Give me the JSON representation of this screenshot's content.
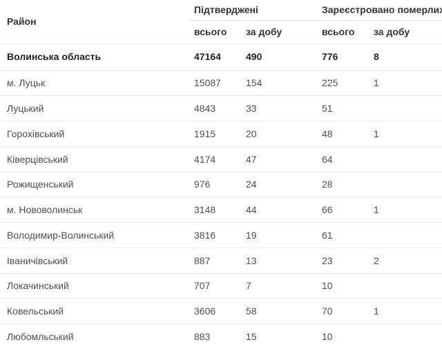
{
  "colors": {
    "bg": "#ffffff",
    "header_text": "#333333",
    "body_text": "#4f4f4f",
    "total_text": "#222222",
    "row_divider": "#e9e9e9",
    "header_divider": "#d6d6d6",
    "group_divider": "#dcdcdc"
  },
  "header": {
    "district": "Район",
    "confirmed_group": "Підтверджені",
    "deaths_group": "Зареєстровано померлих",
    "confirmed_total": "всього",
    "confirmed_daily": "за добу",
    "deaths_total": "всього",
    "deaths_daily": "за добу"
  },
  "table": {
    "rows": [
      {
        "district": "Волинська область",
        "confirmed_total": 47164,
        "confirmed_daily": 490,
        "deaths_total": 776,
        "deaths_daily": 8,
        "bold": true
      },
      {
        "district": "м. Луцьк",
        "confirmed_total": 15087,
        "confirmed_daily": 154,
        "deaths_total": 225,
        "deaths_daily": 1
      },
      {
        "district": "Луцький",
        "confirmed_total": 4843,
        "confirmed_daily": 33,
        "deaths_total": 51,
        "deaths_daily": ""
      },
      {
        "district": "Горохівський",
        "confirmed_total": 1915,
        "confirmed_daily": 20,
        "deaths_total": 48,
        "deaths_daily": 1
      },
      {
        "district": "Ківерцівський",
        "confirmed_total": 4174,
        "confirmed_daily": 47,
        "deaths_total": 64,
        "deaths_daily": ""
      },
      {
        "district": "Рожищенський",
        "confirmed_total": 976,
        "confirmed_daily": 24,
        "deaths_total": 28,
        "deaths_daily": ""
      },
      {
        "district": "м. Нововолинськ",
        "confirmed_total": 3148,
        "confirmed_daily": 44,
        "deaths_total": 66,
        "deaths_daily": 1
      },
      {
        "district": "Володимир-Волинський",
        "confirmed_total": 3816,
        "confirmed_daily": 19,
        "deaths_total": 61,
        "deaths_daily": ""
      },
      {
        "district": "Іваничівський",
        "confirmed_total": 887,
        "confirmed_daily": 13,
        "deaths_total": 23,
        "deaths_daily": 2
      },
      {
        "district": "Локачинський",
        "confirmed_total": 707,
        "confirmed_daily": 7,
        "deaths_total": 10,
        "deaths_daily": ""
      },
      {
        "district": "Ковельський",
        "confirmed_total": 3606,
        "confirmed_daily": 58,
        "deaths_total": 70,
        "deaths_daily": 1
      },
      {
        "district": "Любомльський",
        "confirmed_total": 883,
        "confirmed_daily": 15,
        "deaths_total": 10,
        "deaths_daily": ""
      }
    ]
  },
  "chart_data": {
    "type": "table",
    "columns": [
      "Район",
      "Підтверджені всього",
      "Підтверджені за добу",
      "Зареєстровано померлих всього",
      "Зареєстровано померлих за добу"
    ],
    "rows": [
      [
        "Волинська область",
        47164,
        490,
        776,
        8
      ],
      [
        "м. Луцьк",
        15087,
        154,
        225,
        1
      ],
      [
        "Луцький",
        4843,
        33,
        51,
        null
      ],
      [
        "Горохівський",
        1915,
        20,
        48,
        1
      ],
      [
        "Ківерцівський",
        4174,
        47,
        64,
        null
      ],
      [
        "Рожищенський",
        976,
        24,
        28,
        null
      ],
      [
        "м. Нововолинськ",
        3148,
        44,
        66,
        1
      ],
      [
        "Володимир-Волинський",
        3816,
        19,
        61,
        null
      ],
      [
        "Іваничівський",
        887,
        13,
        23,
        2
      ],
      [
        "Локачинський",
        707,
        7,
        10,
        null
      ],
      [
        "Ковельський",
        3606,
        58,
        70,
        1
      ],
      [
        "Любомльський",
        883,
        15,
        10,
        null
      ]
    ]
  }
}
